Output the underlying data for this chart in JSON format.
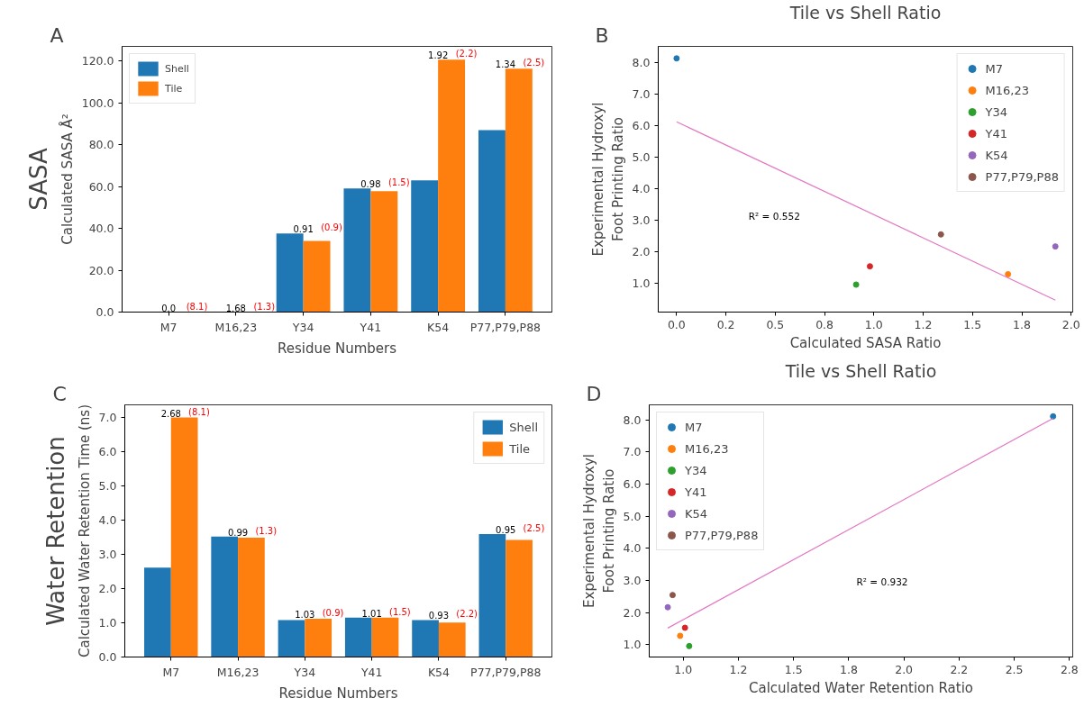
{
  "chart_data": [
    {
      "type": "bar",
      "xlabel": "Residue Numbers",
      "ylabel": "Calculated SASA Å²",
      "categories": [
        "M7",
        "M16,23",
        "Y34",
        "Y41",
        "K54",
        "P77,P79,P88"
      ],
      "series": [
        {
          "name": "Shell",
          "color": "#1f77b4",
          "values": [
            0,
            0,
            37.5,
            59.0,
            62.9,
            86.9
          ]
        },
        {
          "name": "Tile",
          "color": "#ff7f0e",
          "values": [
            0,
            0,
            34.0,
            57.8,
            120.6,
            116.3
          ]
        }
      ],
      "ylim": [
        0,
        126.9
      ],
      "yticks": [
        {
          "value": 0,
          "label": "0.0"
        },
        {
          "value": 20,
          "label": "20.0"
        },
        {
          "value": 40,
          "label": "40.0"
        },
        {
          "value": 60,
          "label": "60.0"
        },
        {
          "value": 80,
          "label": "80.0"
        },
        {
          "value": 100,
          "label": "100.0"
        },
        {
          "value": 120,
          "label": "120.0"
        }
      ],
      "legend": "top left",
      "grid": false,
      "annotations": [
        "A",
        "SASA",
        "0.0",
        "(8.1)",
        "1.68",
        "(1.3)",
        "0.91",
        "(0.9)",
        "0.98",
        "(1.5)",
        "1.92",
        "(2.2)",
        "1.34",
        "(2.5)"
      ]
    },
    {
      "type": "scatter",
      "title": "Tile vs Shell Ratio",
      "xlabel": "Calculated SASA Ratio",
      "ylabel": "Experimental Hydroxyl\nFoot Printing Ratio",
      "marker": "circle",
      "legend": "top right",
      "grid": false,
      "series": [
        {
          "name": "M7",
          "color": "#1f77b4",
          "x": [
            0.0
          ],
          "values": [
            8.12
          ]
        },
        {
          "name": "M16,23",
          "color": "#ff7f0e",
          "x": [
            1.68
          ],
          "values": [
            1.28
          ]
        },
        {
          "name": "Y34",
          "color": "#2ca02c",
          "x": [
            0.91
          ],
          "values": [
            0.95
          ]
        },
        {
          "name": "Y41",
          "color": "#d62728",
          "x": [
            0.98
          ],
          "values": [
            1.53
          ]
        },
        {
          "name": "K54",
          "color": "#9467bd",
          "x": [
            1.92
          ],
          "values": [
            2.16
          ]
        },
        {
          "name": "P77,P79,P88",
          "color": "#8c564b",
          "x": [
            1.34
          ],
          "values": [
            2.54
          ]
        },
        {
          "type": "line",
          "marker": "none",
          "color": "#e377c2",
          "x": [
            0.0,
            1.92
          ],
          "values": [
            6.11,
            0.46
          ]
        }
      ],
      "xlim": [
        -0.093,
        2.008
      ],
      "xticks": [
        {
          "value": 0,
          "label": "0.0"
        },
        {
          "value": 0.25,
          "label": "0.2"
        },
        {
          "value": 0.5,
          "label": "0.5"
        },
        {
          "value": 0.75,
          "label": "0.8"
        },
        {
          "value": 1.0,
          "label": "1.0"
        },
        {
          "value": 1.25,
          "label": "1.2"
        },
        {
          "value": 1.5,
          "label": "1.5"
        },
        {
          "value": 1.75,
          "label": "1.8"
        },
        {
          "value": 2.0,
          "label": "2.0"
        }
      ],
      "ylim": [
        0.08,
        8.5
      ],
      "yticks": [
        {
          "value": 1,
          "label": "1.0"
        },
        {
          "value": 2,
          "label": "2.0"
        },
        {
          "value": 3,
          "label": "3.0"
        },
        {
          "value": 4,
          "label": "4.0"
        },
        {
          "value": 5,
          "label": "5.0"
        },
        {
          "value": 6,
          "label": "6.0"
        },
        {
          "value": 7,
          "label": "7.0"
        },
        {
          "value": 8,
          "label": "8.0"
        }
      ],
      "annotations": [
        "B",
        "R² = 0.552"
      ]
    },
    {
      "type": "bar",
      "xlabel": "Residue Numbers",
      "ylabel": "Calculated Water Retention Time (ns)",
      "categories": [
        "M7",
        "M16,23",
        "Y34",
        "Y41",
        "K54",
        "P77,P79,P88"
      ],
      "series": [
        {
          "name": "Shell",
          "color": "#1f77b4",
          "values": [
            2.61,
            3.52,
            1.08,
            1.15,
            1.08,
            3.59
          ]
        },
        {
          "name": "Tile",
          "color": "#ff7f0e",
          "values": [
            7.0,
            3.49,
            1.12,
            1.15,
            1.01,
            3.42
          ]
        }
      ],
      "ylim": [
        0,
        7.37
      ],
      "yticks": [
        {
          "value": 0,
          "label": "0.0"
        },
        {
          "value": 1,
          "label": "1.0"
        },
        {
          "value": 2,
          "label": "2.0"
        },
        {
          "value": 3,
          "label": "3.0"
        },
        {
          "value": 4,
          "label": "4.0"
        },
        {
          "value": 5,
          "label": "5.0"
        },
        {
          "value": 6,
          "label": "6.0"
        },
        {
          "value": 7,
          "label": "7.0"
        }
      ],
      "legend": "top right",
      "grid": false,
      "annotations": [
        "C",
        "Water Retention",
        "2.68",
        "(8.1)",
        "0.99",
        "(1.3)",
        "1.03",
        "(0.9)",
        "1.01",
        "(1.5)",
        "0.93",
        "(2.2)",
        "0.95",
        "(2.5)"
      ]
    },
    {
      "type": "scatter",
      "title": "Tile vs Shell Ratio",
      "xlabel": "Calculated Water Retention Ratio",
      "ylabel": "Experimental Hydroxyl\nFoot Printing Ratio",
      "marker": "circle",
      "legend": "top left",
      "grid": false,
      "series": [
        {
          "name": "M7",
          "color": "#1f77b4",
          "x": [
            2.676
          ],
          "values": [
            8.11
          ]
        },
        {
          "name": "M16,23",
          "color": "#ff7f0e",
          "x": [
            0.986
          ],
          "values": [
            1.28
          ]
        },
        {
          "name": "Y34",
          "color": "#2ca02c",
          "x": [
            1.027
          ],
          "values": [
            0.96
          ]
        },
        {
          "name": "Y41",
          "color": "#d62728",
          "x": [
            1.008
          ],
          "values": [
            1.53
          ]
        },
        {
          "name": "K54",
          "color": "#9467bd",
          "x": [
            0.93
          ],
          "values": [
            2.17
          ]
        },
        {
          "name": "P77,P79,P88",
          "color": "#8c564b",
          "x": [
            0.952
          ],
          "values": [
            2.55
          ]
        },
        {
          "type": "line",
          "marker": "none",
          "color": "#e377c2",
          "x": [
            0.93,
            2.676
          ],
          "values": [
            1.52,
            8.05
          ]
        }
      ],
      "xlim": [
        0.846,
        2.765
      ],
      "xticks": [
        {
          "value": 1.0,
          "label": "1.0"
        },
        {
          "value": 1.25,
          "label": "1.2"
        },
        {
          "value": 1.5,
          "label": "1.5"
        },
        {
          "value": 1.75,
          "label": "1.8"
        },
        {
          "value": 2.0,
          "label": "2.0"
        },
        {
          "value": 2.25,
          "label": "2.2"
        },
        {
          "value": 2.5,
          "label": "2.5"
        },
        {
          "value": 2.75,
          "label": "2.8"
        }
      ],
      "ylim": [
        0.62,
        8.47
      ],
      "yticks": [
        {
          "value": 1,
          "label": "1.0"
        },
        {
          "value": 2,
          "label": "2.0"
        },
        {
          "value": 3,
          "label": "3.0"
        },
        {
          "value": 4,
          "label": "4.0"
        },
        {
          "value": 5,
          "label": "5.0"
        },
        {
          "value": 6,
          "label": "6.0"
        },
        {
          "value": 7,
          "label": "7.0"
        },
        {
          "value": 8,
          "label": "8.0"
        }
      ],
      "annotations": [
        "D",
        "R² = 0.932"
      ]
    }
  ]
}
